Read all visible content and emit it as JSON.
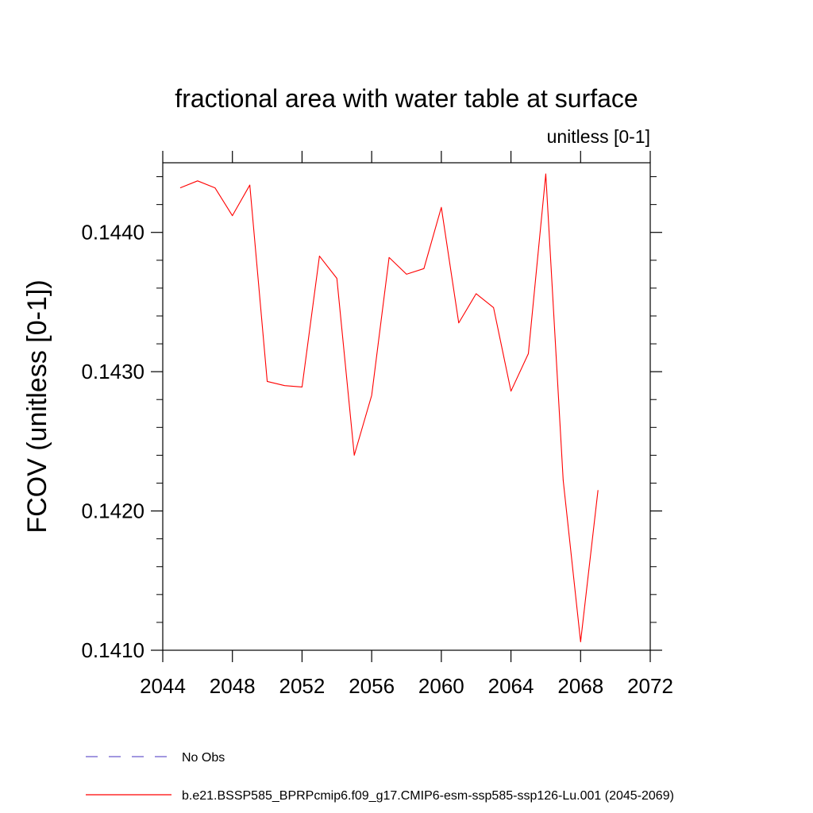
{
  "chart_data": {
    "type": "line",
    "title": "fractional area with water table at surface",
    "units_label": "unitless [0-1]",
    "ylabel": "FCOV  (unitless [0-1])",
    "xlabel": "",
    "xlim": [
      2044,
      2072
    ],
    "ylim": [
      0.141,
      0.1445
    ],
    "x_ticks": [
      2044,
      2048,
      2052,
      2056,
      2060,
      2064,
      2068,
      2072
    ],
    "x_tick_labels": [
      "2044",
      "2048",
      "2052",
      "2056",
      "2060",
      "2064",
      "2068",
      "2072"
    ],
    "y_ticks": [
      0.141,
      0.142,
      0.143,
      0.144
    ],
    "y_tick_labels": [
      "0.1410",
      "0.1420",
      "0.1430",
      "0.1440"
    ],
    "grid": false,
    "legend_position": "bottom",
    "series": [
      {
        "name": "No Obs",
        "color": "#6a5acd",
        "dash": "dashed",
        "x": [],
        "y": []
      },
      {
        "name": "b.e21.BSSP585_BPRPcmip6.f09_g17.CMIP6-esm-ssp585-ssp126-Lu.001 (2045-2069)",
        "color": "#ff0000",
        "dash": "solid",
        "x": [
          2045,
          2046,
          2047,
          2048,
          2049,
          2050,
          2051,
          2052,
          2053,
          2054,
          2055,
          2056,
          2057,
          2058,
          2059,
          2060,
          2061,
          2062,
          2063,
          2064,
          2065,
          2066,
          2067,
          2068,
          2069
        ],
        "y": [
          0.14432,
          0.14437,
          0.14432,
          0.14412,
          0.14434,
          0.14293,
          0.1429,
          0.14289,
          0.14383,
          0.14367,
          0.1424,
          0.14283,
          0.14382,
          0.1437,
          0.14374,
          0.14418,
          0.14335,
          0.14356,
          0.14346,
          0.14286,
          0.14313,
          0.14442,
          0.14222,
          0.14106,
          0.14215
        ]
      }
    ]
  }
}
